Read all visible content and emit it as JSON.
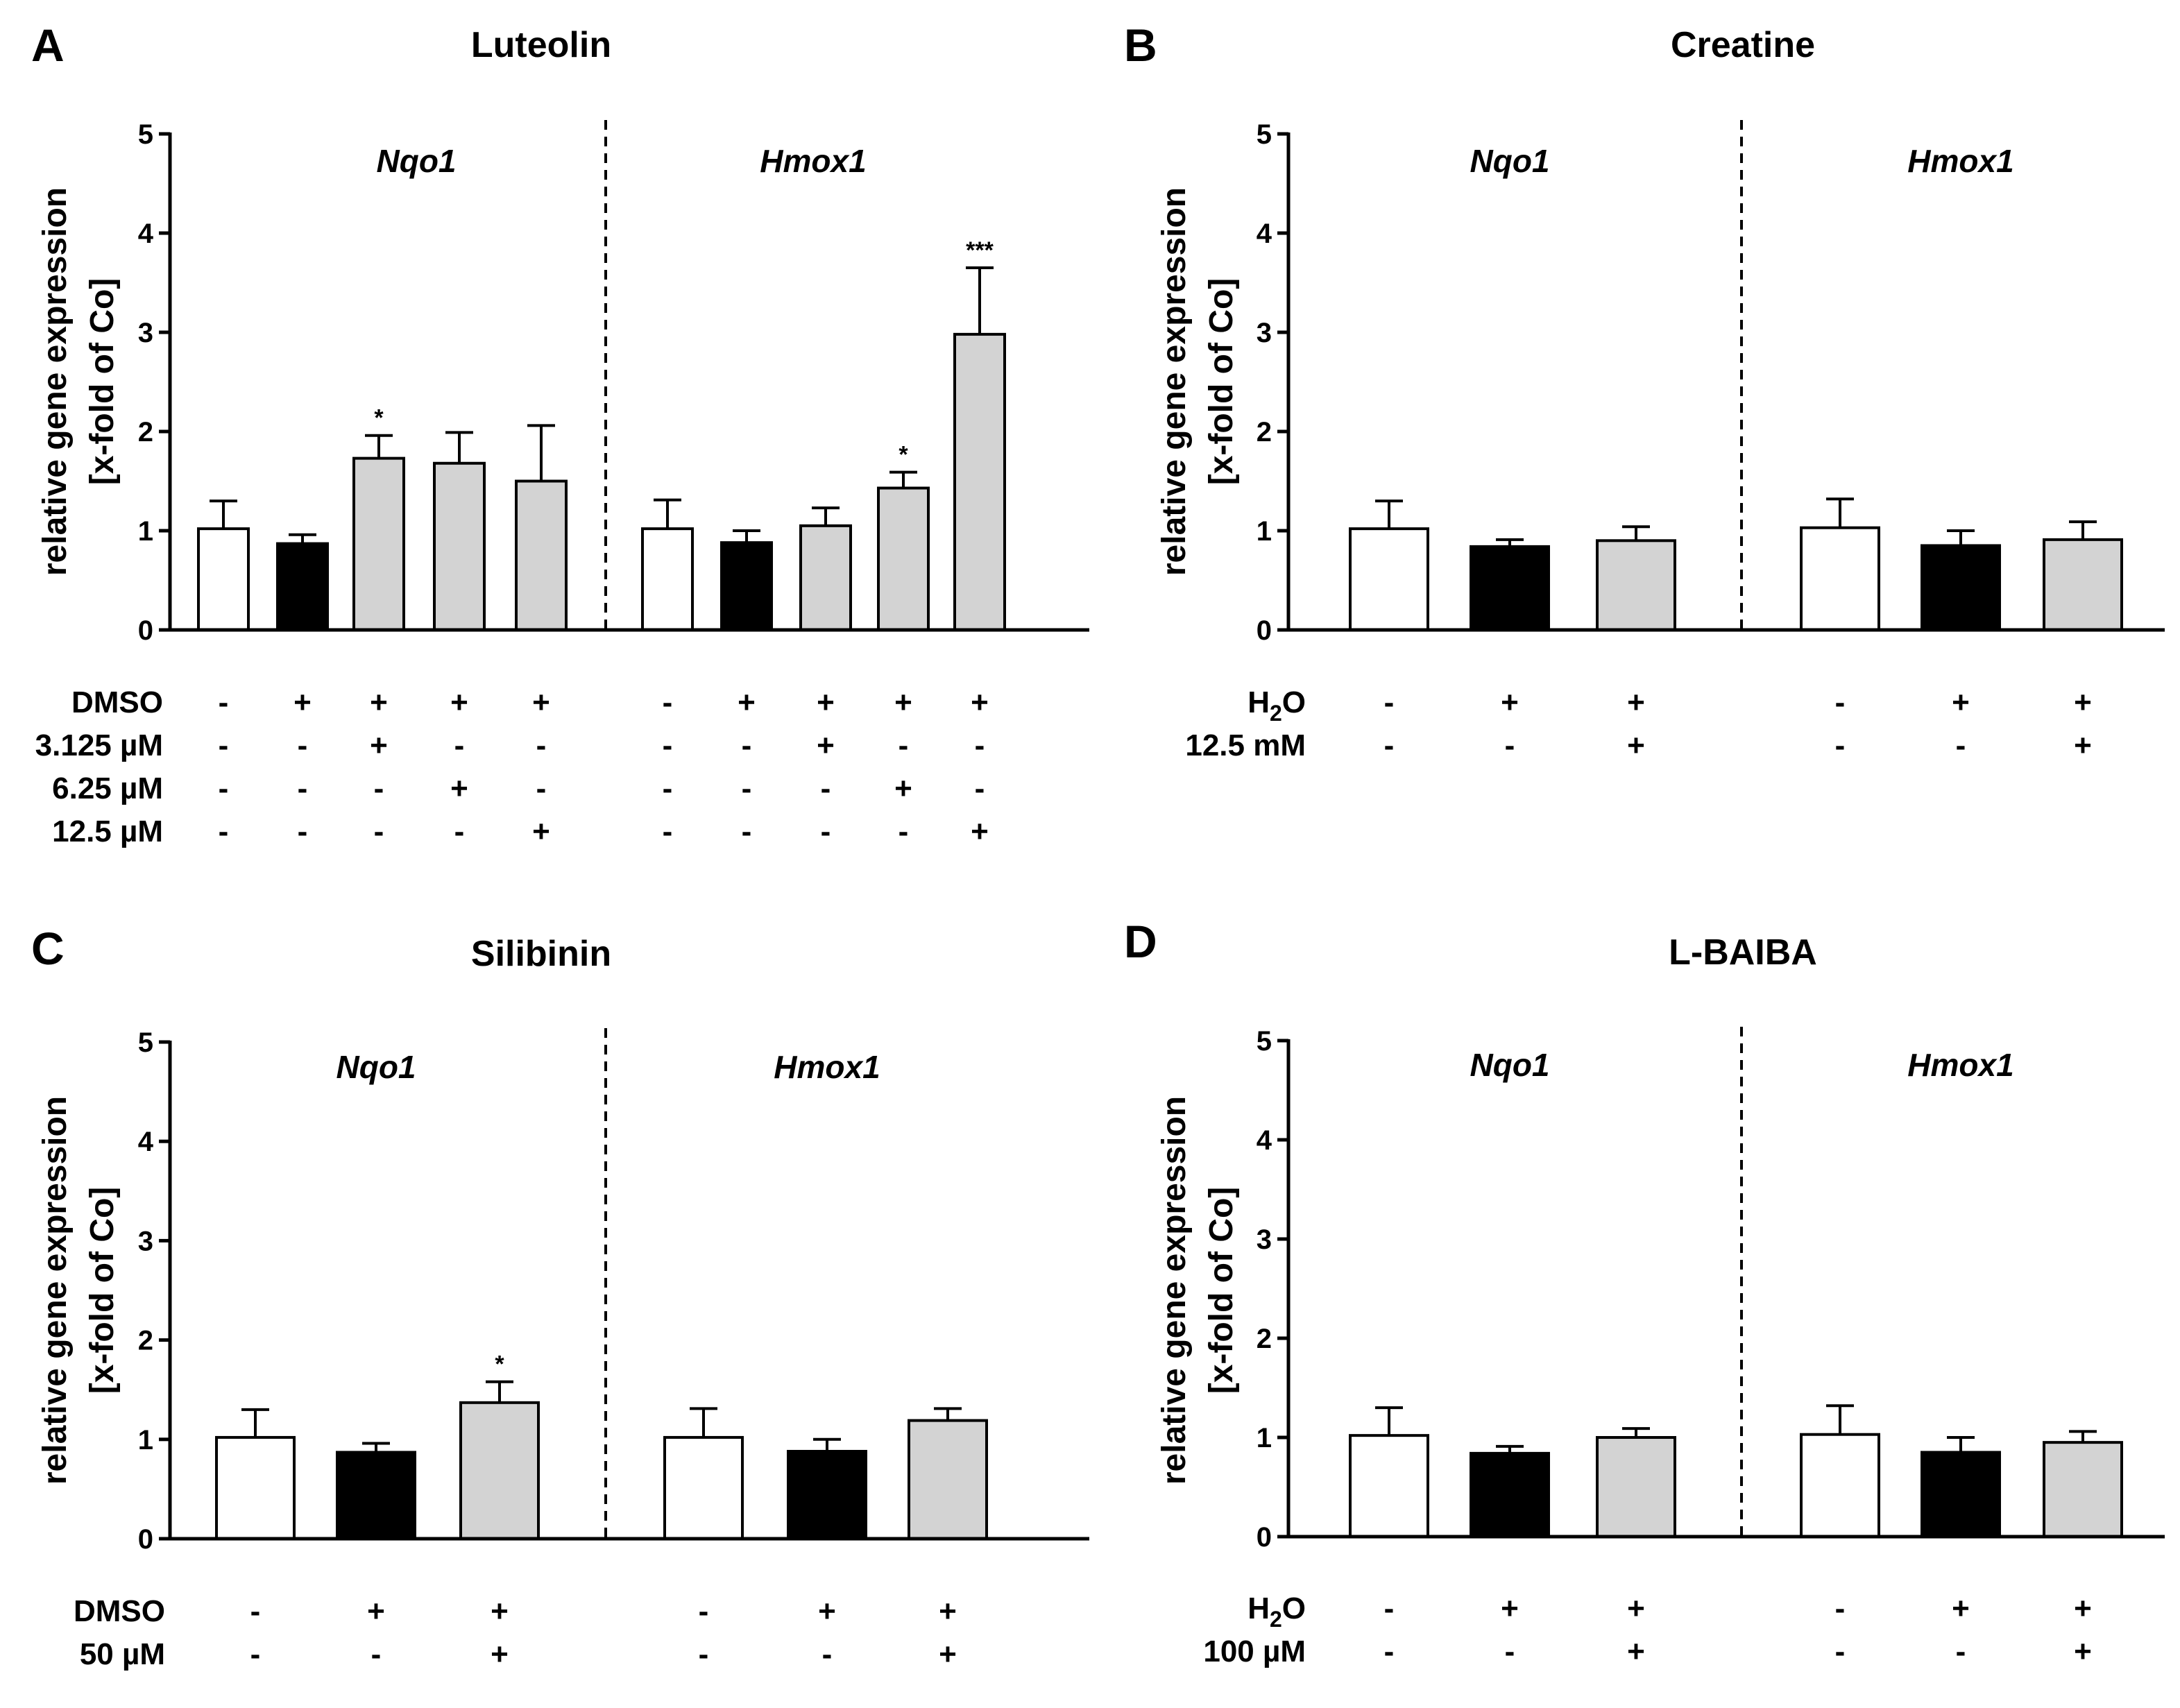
{
  "colors": {
    "white": "#ffffff",
    "black": "#000000",
    "gray": "#d3d3d3",
    "axis": "#000000"
  },
  "chart_data": [
    {
      "type": "bar",
      "panel": "A",
      "title": "Luteolin",
      "ylabel_lines": [
        "relative gene expression",
        "[x-fold of Co]"
      ],
      "ylim": [
        0,
        5
      ],
      "yticks": [
        "0",
        "1",
        "2",
        "3",
        "4",
        "5"
      ],
      "groups": [
        {
          "gene": "Nqo1",
          "bars": [
            {
              "value": 1.02,
              "error": 0.28,
              "fill": "white",
              "star": ""
            },
            {
              "value": 0.87,
              "error": 0.09,
              "fill": "black",
              "star": ""
            },
            {
              "value": 1.73,
              "error": 0.23,
              "fill": "gray",
              "star": "*"
            },
            {
              "value": 1.68,
              "error": 0.31,
              "fill": "gray",
              "star": ""
            },
            {
              "value": 1.5,
              "error": 0.56,
              "fill": "gray",
              "star": ""
            }
          ]
        },
        {
          "gene": "Hmox1",
          "bars": [
            {
              "value": 1.02,
              "error": 0.29,
              "fill": "white",
              "star": ""
            },
            {
              "value": 0.88,
              "error": 0.12,
              "fill": "black",
              "star": ""
            },
            {
              "value": 1.05,
              "error": 0.18,
              "fill": "gray",
              "star": ""
            },
            {
              "value": 1.43,
              "error": 0.16,
              "fill": "gray",
              "star": "*"
            },
            {
              "value": 2.98,
              "error": 0.67,
              "fill": "gray",
              "star": "***"
            }
          ]
        }
      ],
      "treatment_rows": [
        {
          "label": "DMSO",
          "symbols": [
            "-",
            "+",
            "+",
            "+",
            "+",
            "-",
            "+",
            "+",
            "+",
            "+"
          ]
        },
        {
          "label": "3.125 µM",
          "symbols": [
            "-",
            "-",
            "+",
            "-",
            "-",
            "-",
            "-",
            "+",
            "-",
            "-"
          ]
        },
        {
          "label": "6.25 µM",
          "symbols": [
            "-",
            "-",
            "-",
            "+",
            "-",
            "-",
            "-",
            "-",
            "+",
            "-"
          ]
        },
        {
          "label": "12.5 µM",
          "symbols": [
            "-",
            "-",
            "-",
            "-",
            "+",
            "-",
            "-",
            "-",
            "-",
            "+"
          ]
        }
      ]
    },
    {
      "type": "bar",
      "panel": "B",
      "title": "Creatine",
      "ylabel_lines": [
        "relative gene expression",
        "[x-fold of Co]"
      ],
      "ylim": [
        0,
        5
      ],
      "yticks": [
        "0",
        "1",
        "2",
        "3",
        "4",
        "5"
      ],
      "groups": [
        {
          "gene": "Nqo1",
          "bars": [
            {
              "value": 1.02,
              "error": 0.28,
              "fill": "white",
              "star": ""
            },
            {
              "value": 0.84,
              "error": 0.07,
              "fill": "black",
              "star": ""
            },
            {
              "value": 0.9,
              "error": 0.14,
              "fill": "gray",
              "star": ""
            }
          ]
        },
        {
          "gene": "Hmox1",
          "bars": [
            {
              "value": 1.03,
              "error": 0.29,
              "fill": "white",
              "star": ""
            },
            {
              "value": 0.85,
              "error": 0.15,
              "fill": "black",
              "star": ""
            },
            {
              "value": 0.91,
              "error": 0.18,
              "fill": "gray",
              "star": ""
            }
          ]
        }
      ],
      "treatment_rows": [
        {
          "label_main": "H",
          "label_sub": "2",
          "label_tail": "O",
          "symbols": [
            "-",
            "+",
            "+",
            "-",
            "+",
            "+"
          ]
        },
        {
          "label": "12.5 mM",
          "symbols": [
            "-",
            "-",
            "+",
            "-",
            "-",
            "+"
          ]
        }
      ]
    },
    {
      "type": "bar",
      "panel": "C",
      "title": "Silibinin",
      "ylabel_lines": [
        "relative gene expression",
        "[x-fold of Co]"
      ],
      "ylim": [
        0,
        5
      ],
      "yticks": [
        "0",
        "1",
        "2",
        "3",
        "4",
        "5"
      ],
      "groups": [
        {
          "gene": "Nqo1",
          "bars": [
            {
              "value": 1.02,
              "error": 0.28,
              "fill": "white",
              "star": ""
            },
            {
              "value": 0.87,
              "error": 0.09,
              "fill": "black",
              "star": ""
            },
            {
              "value": 1.37,
              "error": 0.21,
              "fill": "gray",
              "star": "*"
            }
          ]
        },
        {
          "gene": "Hmox1",
          "bars": [
            {
              "value": 1.02,
              "error": 0.29,
              "fill": "white",
              "star": ""
            },
            {
              "value": 0.88,
              "error": 0.12,
              "fill": "black",
              "star": ""
            },
            {
              "value": 1.19,
              "error": 0.12,
              "fill": "gray",
              "star": ""
            }
          ]
        }
      ],
      "treatment_rows": [
        {
          "label": "DMSO",
          "symbols": [
            "-",
            "+",
            "+",
            "-",
            "+",
            "+"
          ]
        },
        {
          "label": "50 µM",
          "symbols": [
            "-",
            "-",
            "+",
            "-",
            "-",
            "+"
          ]
        }
      ]
    },
    {
      "type": "bar",
      "panel": "D",
      "title": "L-BAIBA",
      "ylabel_lines": [
        "relative gene expression",
        "[x-fold of Co]"
      ],
      "ylim": [
        0,
        5
      ],
      "yticks": [
        "0",
        "1",
        "2",
        "3",
        "4",
        "5"
      ],
      "groups": [
        {
          "gene": "Nqo1",
          "bars": [
            {
              "value": 1.02,
              "error": 0.28,
              "fill": "white",
              "star": ""
            },
            {
              "value": 0.84,
              "error": 0.07,
              "fill": "black",
              "star": ""
            },
            {
              "value": 1.0,
              "error": 0.09,
              "fill": "gray",
              "star": ""
            }
          ]
        },
        {
          "gene": "Hmox1",
          "bars": [
            {
              "value": 1.03,
              "error": 0.29,
              "fill": "white",
              "star": ""
            },
            {
              "value": 0.85,
              "error": 0.15,
              "fill": "black",
              "star": ""
            },
            {
              "value": 0.95,
              "error": 0.11,
              "fill": "gray",
              "star": ""
            }
          ]
        }
      ],
      "treatment_rows": [
        {
          "label_main": "H",
          "label_sub": "2",
          "label_tail": "O",
          "symbols": [
            "-",
            "+",
            "+",
            "-",
            "+",
            "+"
          ]
        },
        {
          "label": "100 µM",
          "symbols": [
            "-",
            "-",
            "+",
            "-",
            "-",
            "+"
          ]
        }
      ]
    }
  ]
}
